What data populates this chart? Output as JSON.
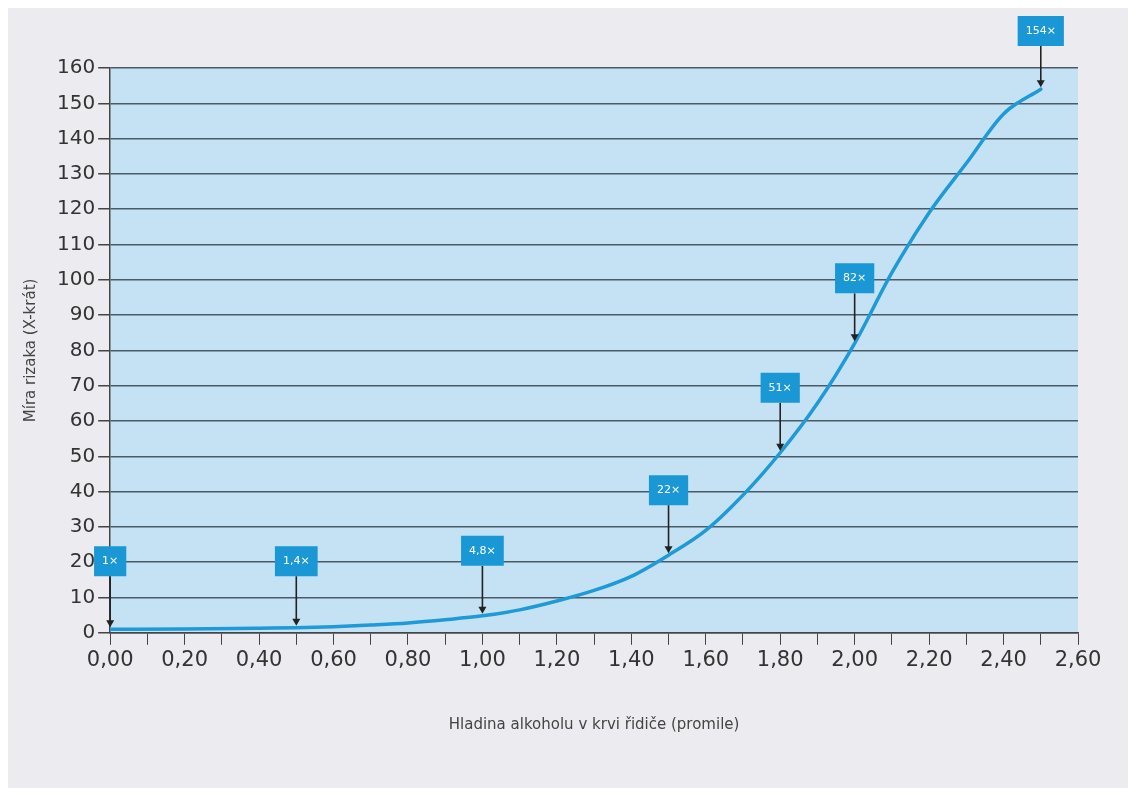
{
  "chart_data": {
    "type": "line",
    "xlabel": "Hladina alkoholu v krvi řidiče (promile)",
    "ylabel": "Míra rizaka (X-krát)",
    "x": [
      0,
      0.2,
      0.4,
      0.5,
      0.6,
      0.7,
      0.8,
      0.9,
      1.0,
      1.1,
      1.2,
      1.3,
      1.4,
      1.5,
      1.6,
      1.7,
      1.8,
      1.9,
      2.0,
      2.1,
      2.2,
      2.3,
      2.4,
      2.5
    ],
    "series": [
      {
        "color": "#1e9ad6",
        "values": [
          1,
          1.1,
          1.3,
          1.4,
          1.7,
          2.2,
          2.8,
          3.7,
          4.8,
          6.5,
          9,
          12,
          16,
          22,
          29,
          39,
          51,
          65,
          82,
          102,
          119,
          133,
          147,
          154
        ]
      }
    ],
    "xlim": [
      0,
      2.6
    ],
    "xticks": [
      {
        "value": 0,
        "label": "0,00"
      },
      {
        "value": 0.1,
        "label": null
      },
      {
        "value": 0.2,
        "label": "0,20"
      },
      {
        "value": 0.3,
        "label": null
      },
      {
        "value": 0.4,
        "label": "0,40"
      },
      {
        "value": 0.5,
        "label": null
      },
      {
        "value": 0.6,
        "label": "0,60"
      },
      {
        "value": 0.7,
        "label": null
      },
      {
        "value": 0.8,
        "label": "0,80"
      },
      {
        "value": 0.9,
        "label": null
      },
      {
        "value": 1.0,
        "label": "1,00"
      },
      {
        "value": 1.1,
        "label": null
      },
      {
        "value": 1.2,
        "label": "1,20"
      },
      {
        "value": 1.3,
        "label": null
      },
      {
        "value": 1.4,
        "label": "1,40"
      },
      {
        "value": 1.5,
        "label": null
      },
      {
        "value": 1.6,
        "label": "1,60"
      },
      {
        "value": 1.7,
        "label": null
      },
      {
        "value": 1.8,
        "label": "1,80"
      },
      {
        "value": 1.9,
        "label": null
      },
      {
        "value": 2.0,
        "label": "2,00"
      },
      {
        "value": 2.1,
        "label": null
      },
      {
        "value": 2.2,
        "label": "2,20"
      },
      {
        "value": 2.3,
        "label": null
      },
      {
        "value": 2.4,
        "label": "2,40"
      },
      {
        "value": 2.5,
        "label": null
      },
      {
        "value": 2.6,
        "label": "2,60"
      }
    ],
    "ylim": [
      0,
      160
    ],
    "yticks": [
      0,
      10,
      20,
      30,
      40,
      50,
      60,
      70,
      80,
      90,
      100,
      110,
      120,
      130,
      140,
      150,
      160
    ],
    "grid": "y",
    "marker": "none",
    "line_style": "solid",
    "legend": false,
    "annotations": [
      {
        "text": "1×",
        "x": 0,
        "y": 1
      },
      {
        "text": "1,4×",
        "x": 0.5,
        "y": 1.4
      },
      {
        "text": "4,8×",
        "x": 1.0,
        "y": 4.8
      },
      {
        "text": "22×",
        "x": 1.5,
        "y": 22
      },
      {
        "text": "51×",
        "x": 1.8,
        "y": 51
      },
      {
        "text": "82×",
        "x": 2.0,
        "y": 82
      },
      {
        "text": "154×",
        "x": 2.5,
        "y": 154
      }
    ]
  }
}
